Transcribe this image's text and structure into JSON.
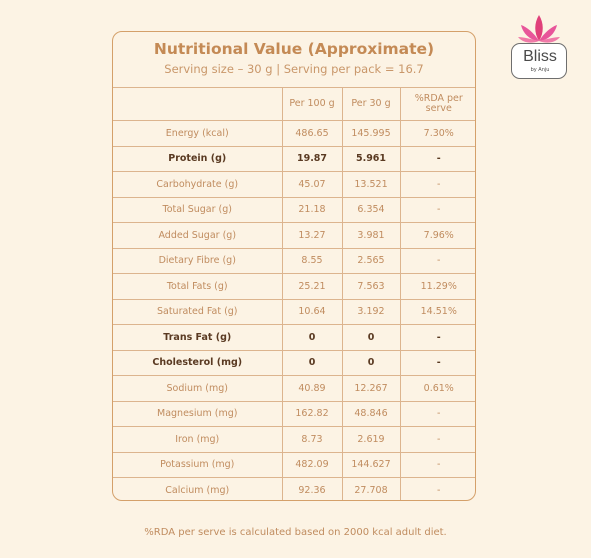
{
  "logo": {
    "brand": "Bliss",
    "tagline": "by Anju"
  },
  "card": {
    "title": "Nutritional Value (Approximate)",
    "subtitle": "Serving size – 30 g | Serving per pack = 16.7"
  },
  "table": {
    "headers": [
      "",
      "Per 100 g",
      "Per 30 g",
      "%RDA per serve"
    ],
    "rows": [
      {
        "name": "Energy (kcal)",
        "per100": "486.65",
        "per30": "145.995",
        "rda": "7.30%",
        "bold": false
      },
      {
        "name": "Protein (g)",
        "per100": "19.87",
        "per30": "5.961",
        "rda": "-",
        "bold": true
      },
      {
        "name": "Carbohydrate (g)",
        "per100": "45.07",
        "per30": "13.521",
        "rda": "-",
        "bold": false
      },
      {
        "name": "Total Sugar (g)",
        "per100": "21.18",
        "per30": "6.354",
        "rda": "-",
        "bold": false
      },
      {
        "name": "Added Sugar (g)",
        "per100": "13.27",
        "per30": "3.981",
        "rda": "7.96%",
        "bold": false
      },
      {
        "name": "Dietary Fibre (g)",
        "per100": "8.55",
        "per30": "2.565",
        "rda": "-",
        "bold": false
      },
      {
        "name": "Total Fats (g)",
        "per100": "25.21",
        "per30": "7.563",
        "rda": "11.29%",
        "bold": false
      },
      {
        "name": "Saturated Fat (g)",
        "per100": "10.64",
        "per30": "3.192",
        "rda": "14.51%",
        "bold": false
      },
      {
        "name": "Trans Fat (g)",
        "per100": "0",
        "per30": "0",
        "rda": "-",
        "bold": true
      },
      {
        "name": "Cholesterol (mg)",
        "per100": "0",
        "per30": "0",
        "rda": "-",
        "bold": true
      },
      {
        "name": "Sodium (mg)",
        "per100": "40.89",
        "per30": "12.267",
        "rda": "0.61%",
        "bold": false
      },
      {
        "name": "Magnesium (mg)",
        "per100": "162.82",
        "per30": "48.846",
        "rda": "-",
        "bold": false
      },
      {
        "name": "Iron (mg)",
        "per100": "8.73",
        "per30": "2.619",
        "rda": "-",
        "bold": false
      },
      {
        "name": "Potassium (mg)",
        "per100": "482.09",
        "per30": "144.627",
        "rda": "-",
        "bold": false
      },
      {
        "name": "Calcium (mg)",
        "per100": "92.36",
        "per30": "27.708",
        "rda": "-",
        "bold": false
      }
    ]
  },
  "footnote": "%RDA per serve is calculated based on 2000 kcal adult diet.",
  "colors": {
    "background": "#fcf3e4",
    "accent": "#c48a55",
    "border": "#d4a06a",
    "bold_text": "#5a3a22",
    "lotus": "#e0407a"
  }
}
